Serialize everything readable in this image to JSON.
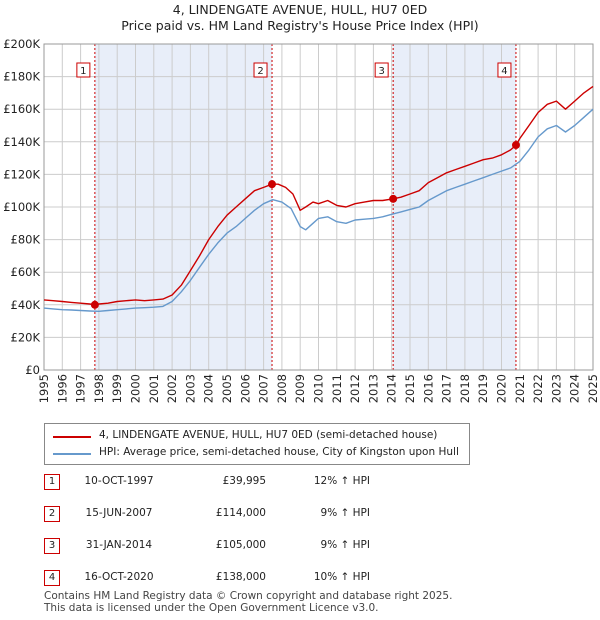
{
  "title_line1": "4, LINDENGATE AVENUE, HULL, HU7 0ED",
  "title_line2": "Price paid vs. HM Land Registry's House Price Index (HPI)",
  "colors": {
    "property": "#cc0000",
    "hpi": "#6699cc",
    "shade": "#e8eef9",
    "grid": "#cccccc",
    "marker": "#cc0000"
  },
  "chart_data": {
    "type": "line",
    "title": "Price paid vs. HM Land Registry's House Price Index (HPI)",
    "xlabel": "",
    "ylabel": "",
    "xlim": [
      1995,
      2025
    ],
    "ylim": [
      0,
      200000
    ],
    "x_ticks": [
      "1995",
      "1996",
      "1997",
      "1998",
      "1999",
      "2000",
      "2001",
      "2002",
      "2003",
      "2004",
      "2005",
      "2006",
      "2007",
      "2008",
      "2009",
      "2010",
      "2011",
      "2012",
      "2013",
      "2014",
      "2015",
      "2016",
      "2017",
      "2018",
      "2019",
      "2020",
      "2021",
      "2022",
      "2023",
      "2024",
      "2025"
    ],
    "y_ticks": [
      {
        "value": 0,
        "label": "£0"
      },
      {
        "value": 20000,
        "label": "£20K"
      },
      {
        "value": 40000,
        "label": "£40K"
      },
      {
        "value": 60000,
        "label": "£60K"
      },
      {
        "value": 80000,
        "label": "£80K"
      },
      {
        "value": 100000,
        "label": "£100K"
      },
      {
        "value": 120000,
        "label": "£120K"
      },
      {
        "value": 140000,
        "label": "£140K"
      },
      {
        "value": 160000,
        "label": "£160K"
      },
      {
        "value": 180000,
        "label": "£180K"
      },
      {
        "value": 200000,
        "label": "£200K"
      }
    ],
    "series": [
      {
        "name": "4, LINDENGATE AVENUE, HULL, HU7 0ED (semi-detached house)",
        "x": [
          1995.0,
          1995.5,
          1996.0,
          1996.5,
          1997.0,
          1997.5,
          1997.78,
          1998.0,
          1998.5,
          1999.0,
          1999.5,
          2000.0,
          2000.5,
          2001.0,
          2001.5,
          2002.0,
          2002.5,
          2003.0,
          2003.5,
          2004.0,
          2004.5,
          2005.0,
          2005.5,
          2006.0,
          2006.5,
          2007.0,
          2007.46,
          2007.8,
          2008.2,
          2008.6,
          2009.0,
          2009.3,
          2009.7,
          2010.0,
          2010.5,
          2011.0,
          2011.5,
          2012.0,
          2012.5,
          2013.0,
          2013.5,
          2014.08,
          2014.5,
          2015.0,
          2015.5,
          2016.0,
          2016.5,
          2017.0,
          2017.5,
          2018.0,
          2018.5,
          2019.0,
          2019.5,
          2020.0,
          2020.5,
          2020.79,
          2021.0,
          2021.5,
          2022.0,
          2022.5,
          2023.0,
          2023.5,
          2024.0,
          2024.5,
          2025.0
        ],
        "values": [
          43000,
          42500,
          42000,
          41500,
          41000,
          40500,
          39995,
          40500,
          41000,
          42000,
          42500,
          43000,
          42500,
          43000,
          43500,
          46000,
          52000,
          61000,
          70000,
          80000,
          88000,
          95000,
          100000,
          105000,
          110000,
          112000,
          114000,
          114000,
          112000,
          108000,
          98000,
          100000,
          103000,
          102000,
          104000,
          101000,
          100000,
          102000,
          103000,
          104000,
          104000,
          105000,
          106000,
          108000,
          110000,
          115000,
          118000,
          121000,
          123000,
          125000,
          127000,
          129000,
          130000,
          132000,
          135000,
          138000,
          142000,
          150000,
          158000,
          163000,
          165000,
          160000,
          165000,
          170000,
          174000
        ]
      },
      {
        "name": "HPI: Average price, semi-detached house, City of Kingston upon Hull",
        "x": [
          1995.0,
          1995.5,
          1996.0,
          1996.5,
          1997.0,
          1997.5,
          1998.0,
          1998.5,
          1999.0,
          1999.5,
          2000.0,
          2000.5,
          2001.0,
          2001.5,
          2002.0,
          2002.5,
          2003.0,
          2003.5,
          2004.0,
          2004.5,
          2005.0,
          2005.5,
          2006.0,
          2006.5,
          2007.0,
          2007.5,
          2008.0,
          2008.5,
          2009.0,
          2009.3,
          2009.7,
          2010.0,
          2010.5,
          2011.0,
          2011.5,
          2012.0,
          2012.5,
          2013.0,
          2013.5,
          2014.0,
          2014.5,
          2015.0,
          2015.5,
          2016.0,
          2016.5,
          2017.0,
          2017.5,
          2018.0,
          2018.5,
          2019.0,
          2019.5,
          2020.0,
          2020.5,
          2021.0,
          2021.5,
          2022.0,
          2022.5,
          2023.0,
          2023.5,
          2024.0,
          2024.5,
          2025.0
        ],
        "values": [
          38000,
          37500,
          37000,
          36800,
          36500,
          36200,
          36000,
          36500,
          37000,
          37500,
          38000,
          38200,
          38500,
          39000,
          42000,
          48000,
          55000,
          63000,
          71000,
          78000,
          84000,
          88000,
          93000,
          98000,
          102000,
          104500,
          103000,
          99000,
          88000,
          86000,
          90000,
          93000,
          94000,
          91000,
          90000,
          92000,
          92500,
          93000,
          94000,
          95500,
          97000,
          98500,
          100000,
          104000,
          107000,
          110000,
          112000,
          114000,
          116000,
          118000,
          120000,
          122000,
          124000,
          128000,
          135000,
          143000,
          148000,
          150000,
          146000,
          150000,
          155000,
          160000
        ]
      }
    ],
    "sales": [
      {
        "num": "1",
        "x": 1997.78,
        "value": 39995
      },
      {
        "num": "2",
        "x": 2007.46,
        "value": 114000
      },
      {
        "num": "3",
        "x": 2014.08,
        "value": 105000
      },
      {
        "num": "4",
        "x": 2020.79,
        "value": 138000
      }
    ],
    "shaded_ranges": [
      [
        1997.78,
        2007.46
      ],
      [
        2014.08,
        2020.79
      ]
    ]
  },
  "legend": {
    "property": "4, LINDENGATE AVENUE, HULL, HU7 0ED (semi-detached house)",
    "hpi": "HPI: Average price, semi-detached house, City of Kingston upon Hull"
  },
  "sales_table": [
    {
      "num": "1",
      "date": "10-OCT-1997",
      "price": "£39,995",
      "hpi": "12% ↑ HPI"
    },
    {
      "num": "2",
      "date": "15-JUN-2007",
      "price": "£114,000",
      "hpi": "9% ↑ HPI"
    },
    {
      "num": "3",
      "date": "31-JAN-2014",
      "price": "£105,000",
      "hpi": "9% ↑ HPI"
    },
    {
      "num": "4",
      "date": "16-OCT-2020",
      "price": "£138,000",
      "hpi": "10% ↑ HPI"
    }
  ],
  "footer_line1": "Contains HM Land Registry data © Crown copyright and database right 2025.",
  "footer_line2": "This data is licensed under the Open Government Licence v3.0."
}
